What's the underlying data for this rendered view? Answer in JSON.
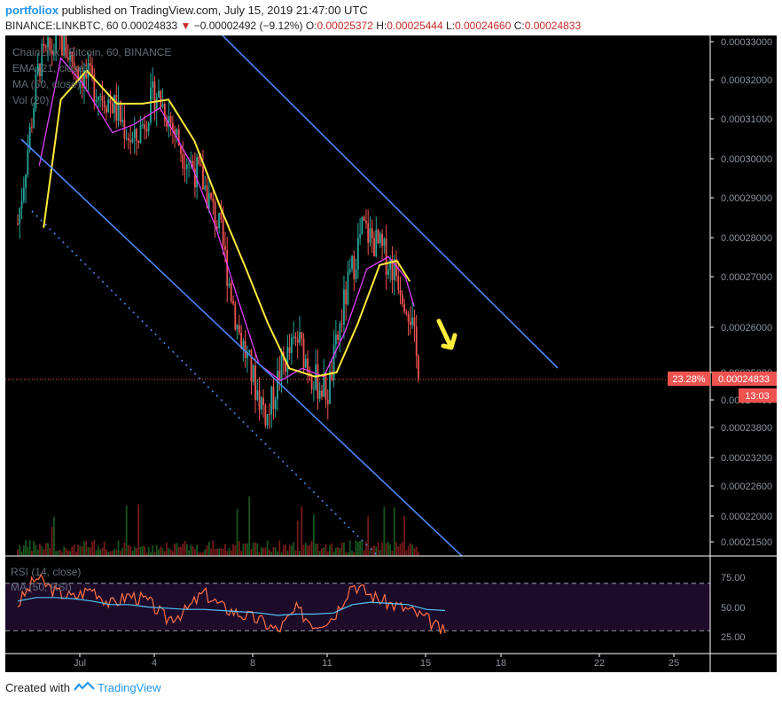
{
  "header": {
    "user": "portfoliox",
    "published_text": "published on TradingView.com, July 15, 2019 21:47:00 UTC",
    "symbol": "BINANCE:LINKBTC, 60",
    "last_price": "0.00024833",
    "change": "−0.00002492 (−9.12%)",
    "o_label": "O:",
    "o_value": "0.00025372",
    "h_label": "H:",
    "h_value": "0.00025444",
    "l_label": "L:",
    "l_value": "0.00024660",
    "c_label": "C:",
    "c_value": "0.00024833"
  },
  "legend": {
    "title": "ChainLink / Bitcoin, 60, BINANCE",
    "ema": "EMA (21, close)",
    "ma": "MA (50, close)",
    "vol": "Vol (20)"
  },
  "rsi_legend": {
    "rsi": "RSI (14, close)",
    "ma": "MA (50, RSI)"
  },
  "price_label": "0.00024833",
  "pct_label": "23.28%",
  "countdown": "13:03",
  "footer": {
    "created": "Created with",
    "brand": "TradingView"
  },
  "colors": {
    "up": "#26a69a",
    "down": "#ef5350",
    "ema": "#e040fb",
    "ma": "#ffeb3b",
    "channel": "#4f86f7",
    "rsi": "#ff7043",
    "rsi_ma": "#4fc3f7",
    "arrow": "#ffeb3b"
  },
  "chart_data": [
    {
      "type": "candlestick",
      "title": "ChainLink / Bitcoin, 60, BINANCE",
      "x_ticks": [
        "Jul",
        "4",
        "8",
        "11",
        "15",
        "18",
        "22",
        "25"
      ],
      "y_ticks": [
        "0.00033000",
        "0.00032000",
        "0.00031000",
        "0.00030000",
        "0.00029000",
        "0.00028000",
        "0.00027000",
        "0.00026000",
        "0.00025000",
        "0.00024400",
        "0.00023800",
        "0.00023200",
        "0.00022600",
        "0.00022000",
        "0.00021500"
      ],
      "last": 0.00024833,
      "close_path": [
        {
          "x": 0,
          "y": 0.000286
        },
        {
          "x": 5,
          "y": 0.000325
        },
        {
          "x": 10,
          "y": 0.00033
        },
        {
          "x": 15,
          "y": 0.000322
        },
        {
          "x": 22,
          "y": 0.000315
        },
        {
          "x": 27,
          "y": 0.000305
        },
        {
          "x": 32,
          "y": 0.000318
        },
        {
          "x": 35,
          "y": 0.000312
        },
        {
          "x": 38,
          "y": 0.000304
        },
        {
          "x": 43,
          "y": 0.000296
        },
        {
          "x": 47,
          "y": 0.000284
        },
        {
          "x": 51,
          "y": 0.000261
        },
        {
          "x": 55,
          "y": 0.000247
        },
        {
          "x": 58,
          "y": 0.000239
        },
        {
          "x": 61,
          "y": 0.000251
        },
        {
          "x": 65,
          "y": 0.000258
        },
        {
          "x": 69,
          "y": 0.000248
        },
        {
          "x": 72,
          "y": 0.000245
        },
        {
          "x": 76,
          "y": 0.000268
        },
        {
          "x": 80,
          "y": 0.000285
        },
        {
          "x": 84,
          "y": 0.00028
        },
        {
          "x": 88,
          "y": 0.000274
        },
        {
          "x": 91,
          "y": 0.000265
        },
        {
          "x": 93,
          "y": 0.00025
        }
      ],
      "ema_21": [
        {
          "x": 5,
          "y": 0.0003
        },
        {
          "x": 10,
          "y": 0.000326
        },
        {
          "x": 15,
          "y": 0.00032
        },
        {
          "x": 22,
          "y": 0.000308
        },
        {
          "x": 27,
          "y": 0.00031
        },
        {
          "x": 33,
          "y": 0.000314
        },
        {
          "x": 40,
          "y": 0.000301
        },
        {
          "x": 46,
          "y": 0.000285
        },
        {
          "x": 51,
          "y": 0.000268
        },
        {
          "x": 56,
          "y": 0.000252
        },
        {
          "x": 61,
          "y": 0.000248
        },
        {
          "x": 66,
          "y": 0.000251
        },
        {
          "x": 71,
          "y": 0.000249
        },
        {
          "x": 76,
          "y": 0.00026
        },
        {
          "x": 81,
          "y": 0.000275
        },
        {
          "x": 86,
          "y": 0.000278
        },
        {
          "x": 90,
          "y": 0.000273
        },
        {
          "x": 92,
          "y": 0.000266
        }
      ],
      "ma_50": [
        {
          "x": 6,
          "y": 0.000285
        },
        {
          "x": 10,
          "y": 0.000316
        },
        {
          "x": 16,
          "y": 0.000323
        },
        {
          "x": 23,
          "y": 0.000315
        },
        {
          "x": 29,
          "y": 0.000315
        },
        {
          "x": 35,
          "y": 0.000316
        },
        {
          "x": 41,
          "y": 0.000306
        },
        {
          "x": 47,
          "y": 0.00029
        },
        {
          "x": 53,
          "y": 0.000275
        },
        {
          "x": 58,
          "y": 0.000262
        },
        {
          "x": 63,
          "y": 0.000251
        },
        {
          "x": 69,
          "y": 0.000249
        },
        {
          "x": 74,
          "y": 0.00025
        },
        {
          "x": 79,
          "y": 0.000262
        },
        {
          "x": 84,
          "y": 0.000276
        },
        {
          "x": 88,
          "y": 0.000277
        },
        {
          "x": 91,
          "y": 0.000272
        }
      ]
    },
    {
      "type": "line",
      "title": "RSI (14, close)",
      "y_ticks": [
        "75.00",
        "50.00",
        "25.00"
      ],
      "bands": [
        70,
        30
      ],
      "series": [
        {
          "name": "RSI (14, close)",
          "values": [
            52,
            75,
            63,
            58,
            66,
            52,
            60,
            55,
            40,
            46,
            62,
            50,
            44,
            39,
            30,
            48,
            35,
            42,
            70,
            60,
            53,
            48,
            40,
            28
          ]
        },
        {
          "name": "MA (50, RSI)",
          "values": [
            55,
            58,
            58,
            57,
            55,
            52,
            52,
            50,
            49,
            48,
            48,
            47,
            46,
            45,
            43,
            44,
            44,
            45,
            52,
            54,
            53,
            52,
            48,
            47
          ]
        }
      ]
    }
  ]
}
